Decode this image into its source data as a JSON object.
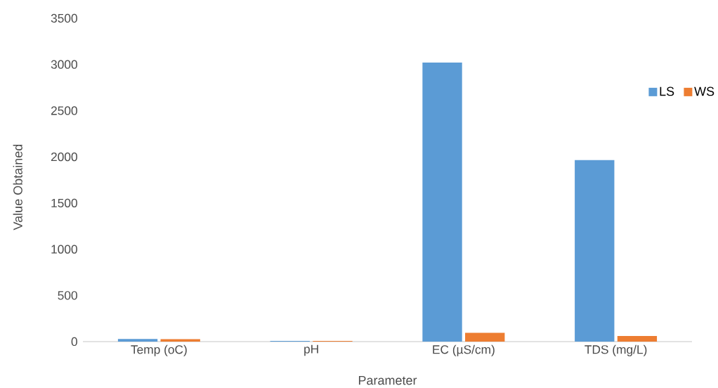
{
  "chart_data": {
    "type": "bar",
    "xlabel": "Parameter",
    "ylabel": "Value Obtained",
    "categories": [
      "Temp (oC)",
      "pH",
      "EC (µS/cm)",
      "TDS (mg/L)"
    ],
    "series": [
      {
        "name": "LS",
        "color": "#5b9bd5",
        "values": [
          28,
          7,
          3020,
          1965
        ]
      },
      {
        "name": "WS",
        "color": "#ed7d31",
        "values": [
          27,
          7,
          95,
          60
        ]
      }
    ],
    "ylim": [
      0,
      3500
    ],
    "yticks": [
      0,
      500,
      1000,
      1500,
      2000,
      2500,
      3000,
      3500
    ],
    "grid": false,
    "legend": "right"
  }
}
